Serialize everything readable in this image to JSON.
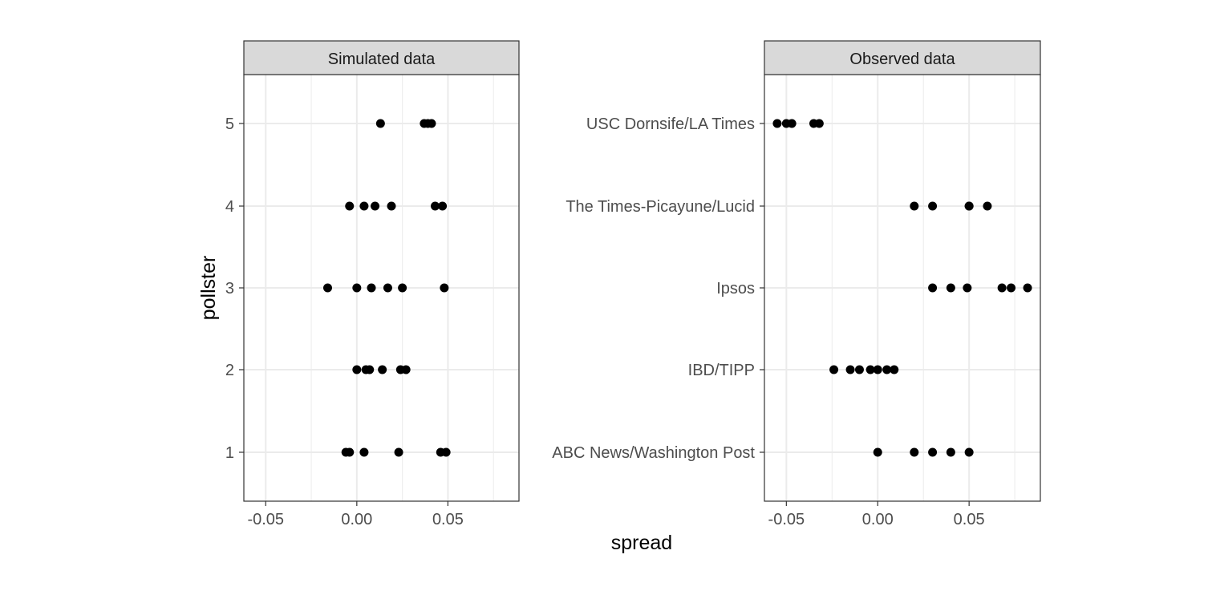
{
  "chart_data": {
    "type": "scatter",
    "xlabel": "spread",
    "ylabel": "pollster",
    "xlim": [
      -0.062,
      0.089
    ],
    "x_ticks": [
      -0.05,
      0.0,
      0.05
    ],
    "x_tick_labels": [
      "-0.05",
      "0.00",
      "0.05"
    ],
    "grid": true,
    "panels": [
      {
        "title": "Simulated data",
        "y_categories": [
          "1",
          "2",
          "3",
          "4",
          "5"
        ],
        "points": [
          {
            "y": "5",
            "x": 0.013
          },
          {
            "y": "5",
            "x": 0.037
          },
          {
            "y": "5",
            "x": 0.039
          },
          {
            "y": "5",
            "x": 0.041
          },
          {
            "y": "4",
            "x": -0.004
          },
          {
            "y": "4",
            "x": 0.004
          },
          {
            "y": "4",
            "x": 0.01
          },
          {
            "y": "4",
            "x": 0.019
          },
          {
            "y": "4",
            "x": 0.043
          },
          {
            "y": "4",
            "x": 0.047
          },
          {
            "y": "3",
            "x": -0.016
          },
          {
            "y": "3",
            "x": 0.0
          },
          {
            "y": "3",
            "x": 0.008
          },
          {
            "y": "3",
            "x": 0.017
          },
          {
            "y": "3",
            "x": 0.025
          },
          {
            "y": "3",
            "x": 0.048
          },
          {
            "y": "2",
            "x": 0.0
          },
          {
            "y": "2",
            "x": 0.005
          },
          {
            "y": "2",
            "x": 0.007
          },
          {
            "y": "2",
            "x": 0.014
          },
          {
            "y": "2",
            "x": 0.024
          },
          {
            "y": "2",
            "x": 0.027
          },
          {
            "y": "1",
            "x": -0.006
          },
          {
            "y": "1",
            "x": -0.004
          },
          {
            "y": "1",
            "x": 0.004
          },
          {
            "y": "1",
            "x": 0.023
          },
          {
            "y": "1",
            "x": 0.046
          },
          {
            "y": "1",
            "x": 0.049
          }
        ]
      },
      {
        "title": "Observed data",
        "y_categories": [
          "ABC News/Washington Post",
          "IBD/TIPP",
          "Ipsos",
          "The Times-Picayune/Lucid",
          "USC Dornsife/LA Times"
        ],
        "points": [
          {
            "y": "USC Dornsife/LA Times",
            "x": -0.055
          },
          {
            "y": "USC Dornsife/LA Times",
            "x": -0.05
          },
          {
            "y": "USC Dornsife/LA Times",
            "x": -0.047
          },
          {
            "y": "USC Dornsife/LA Times",
            "x": -0.035
          },
          {
            "y": "USC Dornsife/LA Times",
            "x": -0.032
          },
          {
            "y": "The Times-Picayune/Lucid",
            "x": 0.02
          },
          {
            "y": "The Times-Picayune/Lucid",
            "x": 0.03
          },
          {
            "y": "The Times-Picayune/Lucid",
            "x": 0.05
          },
          {
            "y": "The Times-Picayune/Lucid",
            "x": 0.05
          },
          {
            "y": "The Times-Picayune/Lucid",
            "x": 0.06
          },
          {
            "y": "Ipsos",
            "x": 0.03
          },
          {
            "y": "Ipsos",
            "x": 0.04
          },
          {
            "y": "Ipsos",
            "x": 0.049
          },
          {
            "y": "Ipsos",
            "x": 0.068
          },
          {
            "y": "Ipsos",
            "x": 0.073
          },
          {
            "y": "Ipsos",
            "x": 0.082
          },
          {
            "y": "IBD/TIPP",
            "x": -0.024
          },
          {
            "y": "IBD/TIPP",
            "x": -0.015
          },
          {
            "y": "IBD/TIPP",
            "x": -0.01
          },
          {
            "y": "IBD/TIPP",
            "x": -0.004
          },
          {
            "y": "IBD/TIPP",
            "x": 0.0
          },
          {
            "y": "IBD/TIPP",
            "x": 0.005
          },
          {
            "y": "IBD/TIPP",
            "x": 0.009
          },
          {
            "y": "ABC News/Washington Post",
            "x": 0.0
          },
          {
            "y": "ABC News/Washington Post",
            "x": 0.02
          },
          {
            "y": "ABC News/Washington Post",
            "x": 0.03
          },
          {
            "y": "ABC News/Washington Post",
            "x": 0.04
          },
          {
            "y": "ABC News/Washington Post",
            "x": 0.05
          }
        ]
      }
    ]
  }
}
